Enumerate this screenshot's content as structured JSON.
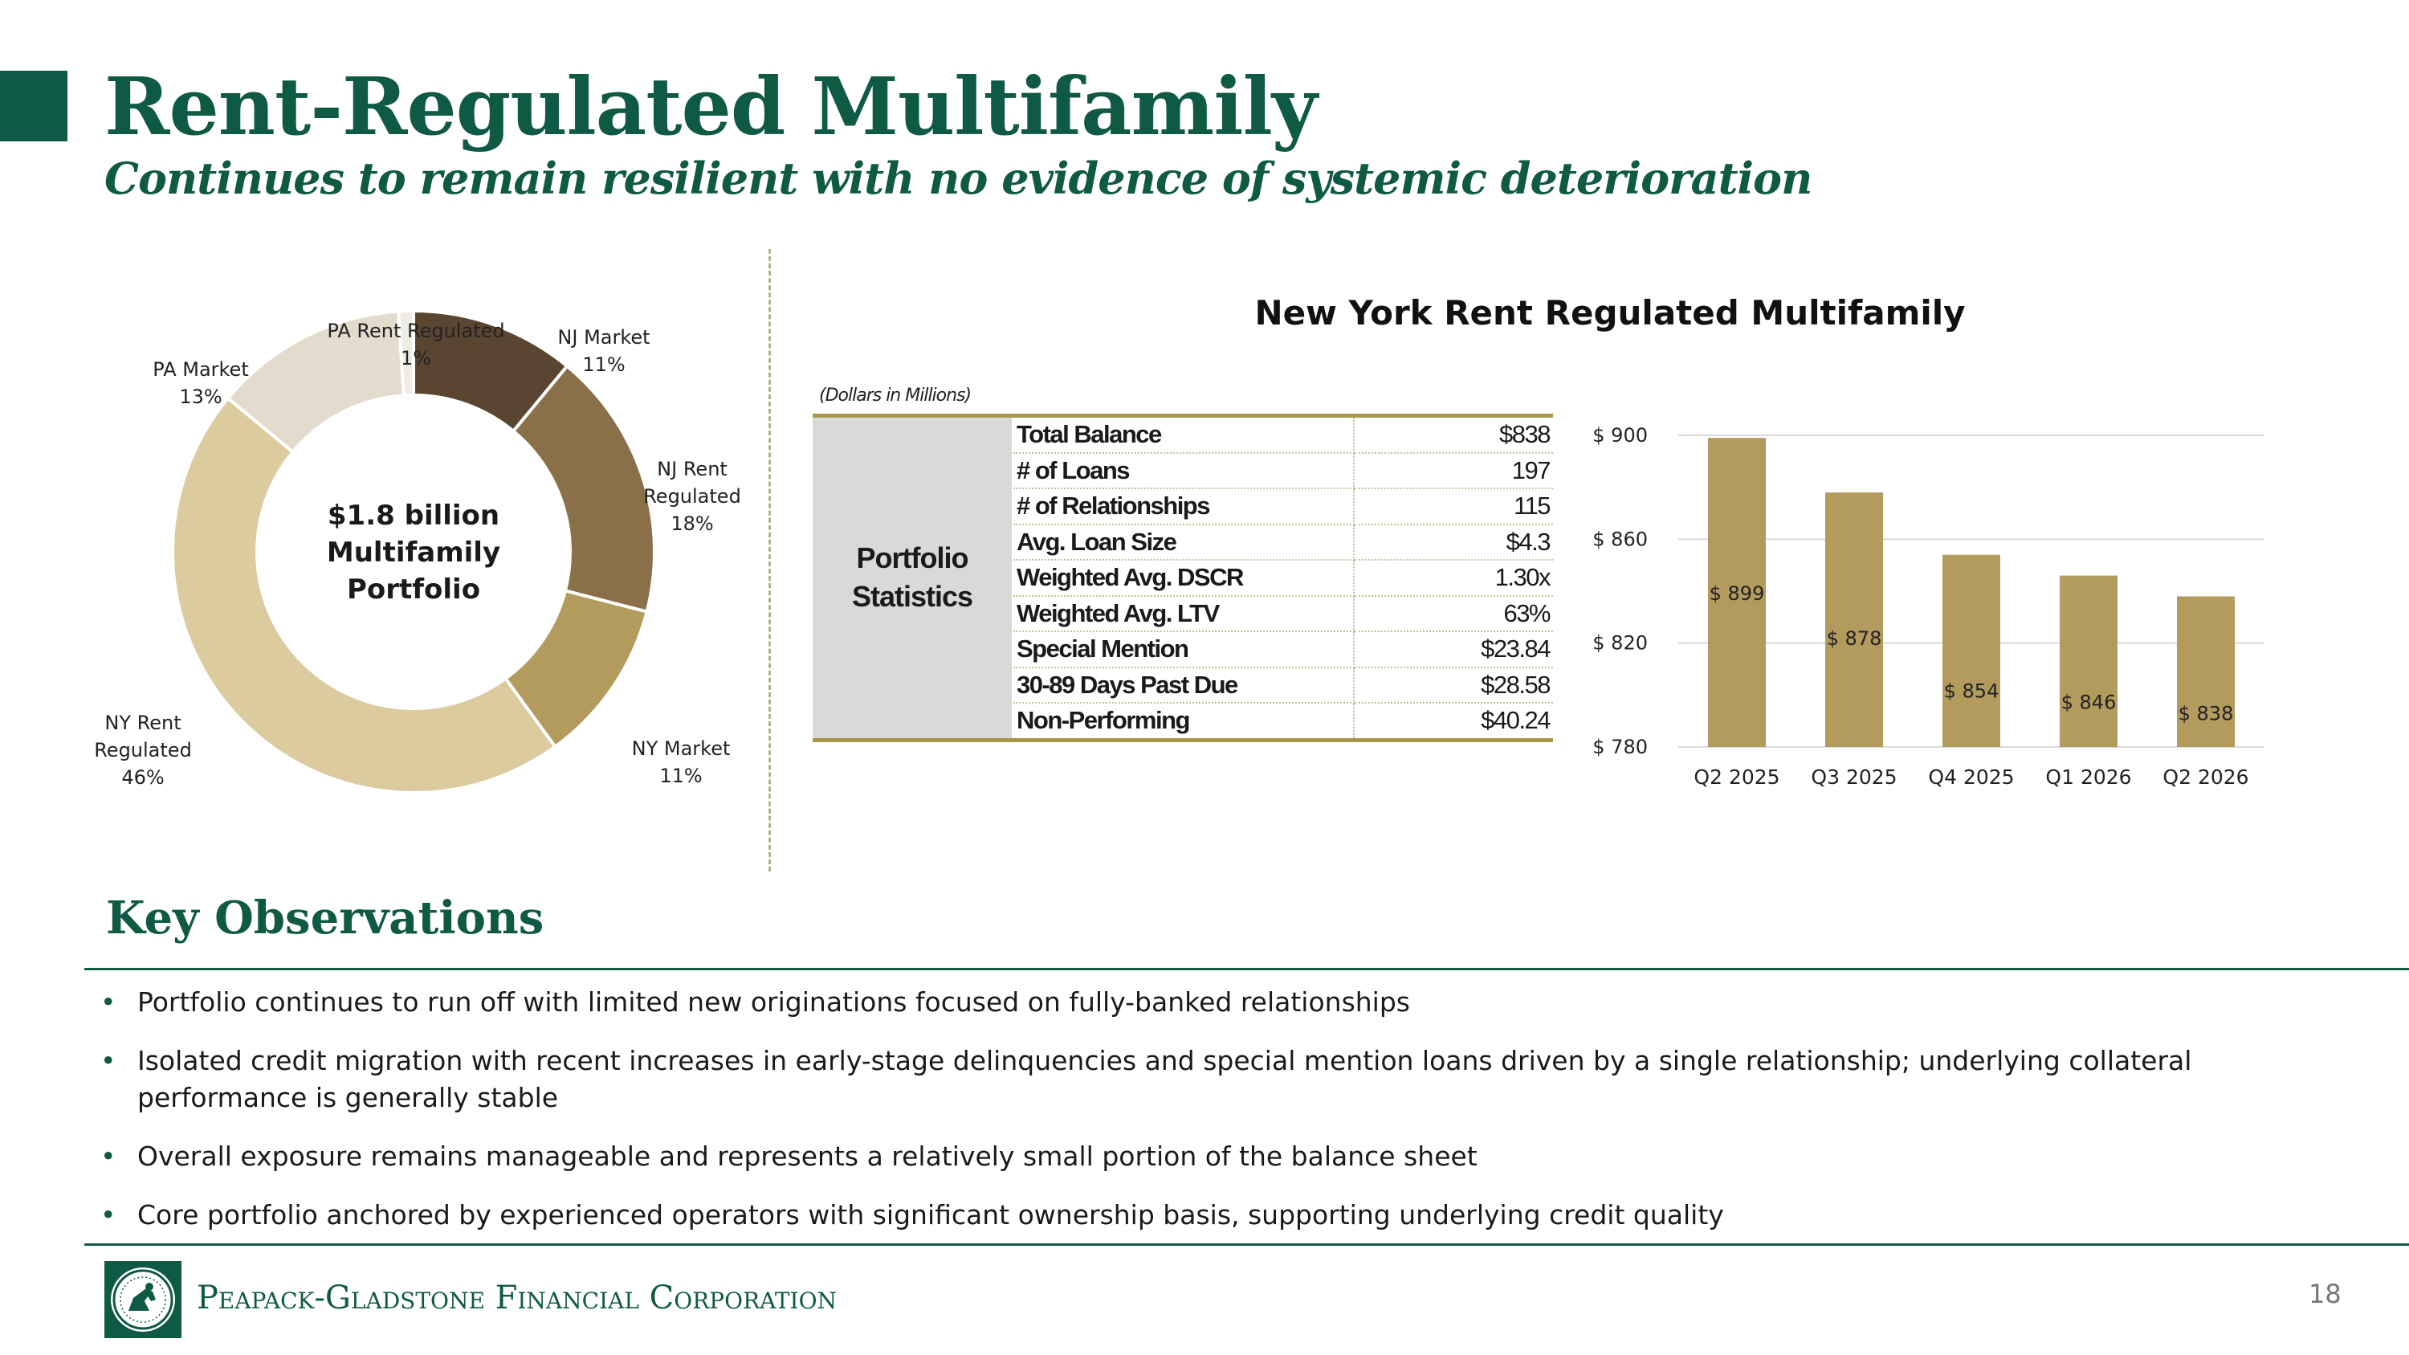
{
  "header": {
    "title": "Rent-Regulated Multifamily",
    "subtitle": "Continues to remain resilient with no evidence of systemic deterioration"
  },
  "colors": {
    "brand_green": "#0f5a45",
    "gold": "#a8964d",
    "bar_fill": "#b39b5e",
    "donut": [
      "#5a4630",
      "#8a7049",
      "#b39b5e",
      "#dccb9e",
      "#e3dccd",
      "#efece3"
    ]
  },
  "chart_data": [
    {
      "type": "pie",
      "subtype": "donut",
      "center_text": [
        "$1.8 billion",
        "Multifamily",
        "Portfolio"
      ],
      "slices": [
        {
          "label_lines": [
            "NJ Market",
            "11%"
          ],
          "category": "NJ Market",
          "value": 11
        },
        {
          "label_lines": [
            "NJ Rent",
            "Regulated",
            "18%"
          ],
          "category": "NJ Rent Regulated",
          "value": 18
        },
        {
          "label_lines": [
            "NY Market",
            "11%"
          ],
          "category": "NY Market",
          "value": 11
        },
        {
          "label_lines": [
            "NY Rent",
            "Regulated",
            "46%"
          ],
          "category": "NY Rent Regulated",
          "value": 46
        },
        {
          "label_lines": [
            "PA Market",
            "13%"
          ],
          "category": "PA Market",
          "value": 13
        },
        {
          "label_lines": [
            "PA Rent Regulated",
            "1%"
          ],
          "category": "PA Rent Regulated",
          "value": 1
        }
      ]
    },
    {
      "type": "table",
      "title": "New York Rent Regulated Multifamily",
      "note": "(Dollars in Millions)",
      "group_label": [
        "Portfolio",
        "Statistics"
      ],
      "rows": [
        {
          "label": "Total Balance",
          "value": "$838"
        },
        {
          "label": "# of Loans",
          "value": "197"
        },
        {
          "label": "# of Relationships",
          "value": "115"
        },
        {
          "label": "Avg. Loan Size",
          "value": "$4.3"
        },
        {
          "label": "Weighted Avg. DSCR",
          "value": "1.30x"
        },
        {
          "label": "Weighted Avg. LTV",
          "value": "63%"
        },
        {
          "label": "Special Mention",
          "value": "$23.84"
        },
        {
          "label": "30-89 Days Past Due",
          "value": "$28.58"
        },
        {
          "label": "Non-Performing",
          "value": "$40.24"
        }
      ]
    },
    {
      "type": "bar",
      "categories": [
        "Q2 2025",
        "Q3 2025",
        "Q4 2025",
        "Q1 2026",
        "Q2 2026"
      ],
      "values": [
        899,
        878,
        854,
        846,
        838
      ],
      "data_labels": [
        "$ 899",
        "$ 878",
        "$ 854",
        "$ 846",
        "$ 838"
      ],
      "yticks": [
        780,
        820,
        860,
        900
      ],
      "ytick_labels": [
        "$ 780",
        "$ 820",
        "$ 860",
        "$ 900"
      ],
      "ylim": [
        780,
        900
      ],
      "grid": true
    }
  ],
  "observations": {
    "title": "Key Observations",
    "items": [
      "Portfolio continues to run off with limited new originations focused on fully-banked relationships",
      "Isolated credit migration with recent increases in early-stage delinquencies and special mention loans driven by a single relationship; underlying collateral performance is generally stable",
      "Overall exposure remains manageable and represents a relatively small portion of the balance sheet",
      "Core portfolio anchored by experienced operators with significant ownership basis, supporting underlying credit quality"
    ]
  },
  "footer": {
    "company": "Peapack-Gladstone Financial Corporation",
    "page_number": "18",
    "logo_icon": "seal-logo-icon"
  }
}
